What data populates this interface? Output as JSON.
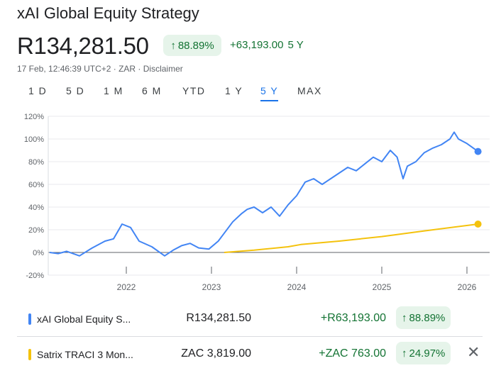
{
  "title": "xAI Global Equity Strategy",
  "price": "R134,281.50",
  "pct_chip": "88.89%",
  "change": "+63,193.00",
  "period_label": "5 Y",
  "meta": "17 Feb, 12:46:39 UTC+2 · ZAR · Disclaimer",
  "tabs": [
    "1 D",
    "5 D",
    "1 M",
    "6 M",
    "YTD",
    "1 Y",
    "5 Y",
    "MAX"
  ],
  "active_tab": "5 Y",
  "colors": {
    "series1": "#4285f4",
    "series2": "#f4c20d",
    "positive": "#137333",
    "chip_bg": "#e6f4ea",
    "active_tab": "#1a73e8"
  },
  "icons": {
    "up_arrow": "↑",
    "close": "✕"
  },
  "rows": [
    {
      "name": "xAI Global Equity S...",
      "value": "R134,281.50",
      "change": "+R63,193.00",
      "pct": "88.89%",
      "color": "#4285f4"
    },
    {
      "name": "Satrix TRACI 3 Mon...",
      "value": "ZAC 3,819.00",
      "change": "+ZAC 763.00",
      "pct": "24.97%",
      "color": "#f4c20d"
    }
  ],
  "chart_data": {
    "type": "line",
    "y_ticks": [
      "120%",
      "100%",
      "80%",
      "60%",
      "40%",
      "20%",
      "0%",
      "-20%"
    ],
    "y_tick_values": [
      120,
      100,
      80,
      60,
      40,
      20,
      0,
      -20
    ],
    "x_ticks": [
      "2022",
      "2023",
      "2024",
      "2025",
      "2026"
    ],
    "x_tick_values": [
      2022,
      2023,
      2024,
      2025,
      2026
    ],
    "xlim": [
      2021.1,
      2026.15
    ],
    "ylim": [
      -20,
      120
    ],
    "grid": true,
    "series": [
      {
        "name": "xAI Global Equity S...",
        "x": [
          2021.1,
          2021.2,
          2021.3,
          2021.45,
          2021.6,
          2021.75,
          2021.85,
          2021.95,
          2022.05,
          2022.15,
          2022.3,
          2022.45,
          2022.55,
          2022.65,
          2022.75,
          2022.85,
          2022.97,
          2023.08,
          2023.15,
          2023.25,
          2023.35,
          2023.42,
          2023.5,
          2023.6,
          2023.7,
          2023.8,
          2023.9,
          2024.0,
          2024.1,
          2024.2,
          2024.3,
          2024.4,
          2024.5,
          2024.6,
          2024.7,
          2024.8,
          2024.9,
          2025.0,
          2025.1,
          2025.18,
          2025.25,
          2025.3,
          2025.4,
          2025.5,
          2025.6,
          2025.7,
          2025.8,
          2025.85,
          2025.9,
          2026.0,
          2026.13
        ],
        "y": [
          0,
          -1,
          1,
          -3,
          4,
          10,
          12,
          25,
          22,
          10,
          5,
          -3,
          2,
          6,
          8,
          4,
          3,
          10,
          17,
          27,
          34,
          38,
          40,
          35,
          40,
          32,
          42,
          50,
          62,
          65,
          60,
          65,
          70,
          75,
          72,
          78,
          84,
          80,
          90,
          84,
          65,
          76,
          80,
          88,
          92,
          95,
          100,
          106,
          100,
          96,
          89
        ]
      },
      {
        "name": "Satrix TRACI 3 Mon...",
        "x": [
          2023.15,
          2023.5,
          2023.9,
          2024.05,
          2024.5,
          2025.0,
          2025.5,
          2026.13
        ],
        "y": [
          0,
          2,
          5,
          7,
          10,
          14,
          19,
          25
        ]
      }
    ]
  }
}
